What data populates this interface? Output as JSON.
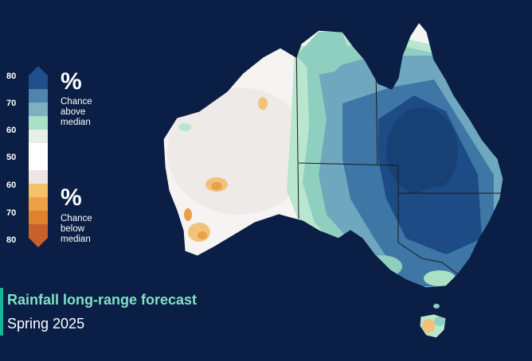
{
  "title": "Rainfall long-range forecast",
  "subtitle": "Spring 2025",
  "legend": {
    "ticks": [
      "80",
      "70",
      "60",
      "50",
      "60",
      "70",
      "80"
    ],
    "above": {
      "symbol": "%",
      "caption_lines": [
        "Chance",
        "above",
        "median"
      ]
    },
    "below": {
      "symbol": "%",
      "caption_lines": [
        "Chance",
        "below",
        "median"
      ]
    },
    "colors": {
      "above_80": "#1f4e8a",
      "above_70": "#4f84ad",
      "above_65": "#7fb0c2",
      "above_60": "#a9e0c6",
      "neutral_55": "#e6efe8",
      "neutral_50": "#ffffff",
      "neutral_45": "#ede6e4",
      "below_60": "#f6c168",
      "below_65": "#eea046",
      "below_70": "#e0822d",
      "below_80": "#c8602a"
    }
  },
  "map_colors": {
    "background": "#0b1e45",
    "deep_blue": "#1c4b85",
    "mid_blue": "#3e76a6",
    "light_blue": "#6fa7be",
    "teal": "#8fcfc0",
    "mint": "#b9e6cf",
    "pale": "#e9eee9",
    "white": "#f6f4f2",
    "orange": "#e8a04a",
    "light_orange": "#f2c27a",
    "border": "#1a1a1a",
    "title_accent": "#18b49a"
  }
}
